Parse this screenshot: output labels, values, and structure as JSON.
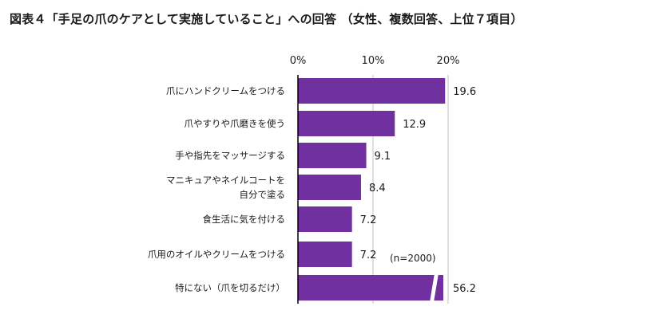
{
  "chart_data": {
    "type": "bar",
    "orientation": "horizontal",
    "title": "図表４「手足の爪のケアとして実施していること」への回答 （女性、複数回答、上位７項目）",
    "categories": [
      [
        "爪にハンドクリームをつける"
      ],
      [
        "爪やすりや爪磨きを使う"
      ],
      [
        "手や指先をマッサージする"
      ],
      [
        "マニキュアやネイルコートを",
        "自分で塗る"
      ],
      [
        "食生活に気を付ける"
      ],
      [
        "爪用のオイルやクリームをつける"
      ],
      [
        "特にない（爪を切るだけ）"
      ]
    ],
    "values": [
      19.6,
      12.9,
      9.1,
      8.4,
      7.2,
      7.2,
      56.2
    ],
    "value_labels": [
      "19.6",
      "12.9",
      "9.1",
      "8.4",
      "7.2",
      "7.2",
      "56.2"
    ],
    "x_ticks": [
      0,
      10,
      20
    ],
    "x_tick_labels": [
      "0%",
      "10%",
      "20%"
    ],
    "xlim": [
      0,
      20
    ],
    "axis_break_on": "特にない（爪を切るだけ）",
    "annotation": "(n=2000)",
    "grid": true,
    "colors": {
      "bar": "#7030a0",
      "grid": "#bfbfbf",
      "axis": "#000000"
    }
  }
}
